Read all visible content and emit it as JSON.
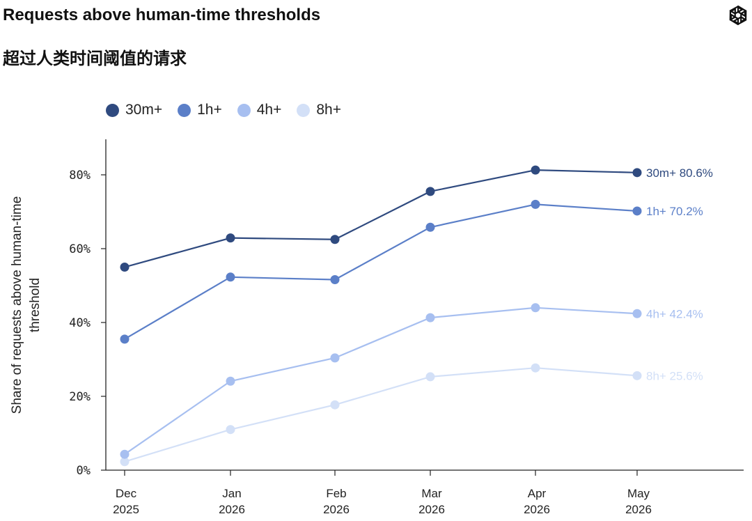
{
  "header": {
    "title": "Requests above human-time thresholds",
    "subtitle": "超过人类时间阈值的请求",
    "logo_icon": "openai-logo-icon"
  },
  "chart_data": {
    "type": "line",
    "title": "Requests above human-time thresholds",
    "subtitle": "超过人类时间阈值的请求",
    "ylabel": "Share of requests above human-time threshold",
    "xlabel": "",
    "categories": [
      "Dec 2025",
      "Jan 2026",
      "Feb 2026",
      "Mar 2026",
      "Apr 2026",
      "May 2026"
    ],
    "x_tick_labels": [
      [
        "Dec",
        "2025"
      ],
      [
        "Jan",
        "2026"
      ],
      [
        "Feb",
        "2026"
      ],
      [
        "Mar",
        "2026"
      ],
      [
        "Apr",
        "2026"
      ],
      [
        "May",
        "2026"
      ]
    ],
    "y_ticks": [
      0,
      20,
      40,
      60,
      80
    ],
    "y_tick_labels": [
      "0%",
      "20%",
      "40%",
      "60%",
      "80%"
    ],
    "ylim": [
      0,
      90
    ],
    "grid": false,
    "legend_position": "top-left",
    "series": [
      {
        "name": "30m+",
        "color": "#2f4a7f",
        "values": [
          55.0,
          62.9,
          62.5,
          75.5,
          81.3,
          80.6
        ],
        "end_label": "30m+ 80.6%"
      },
      {
        "name": "1h+",
        "color": "#5b7fc8",
        "values": [
          35.5,
          52.3,
          51.6,
          65.8,
          72.0,
          70.2
        ],
        "end_label": "1h+ 70.2%"
      },
      {
        "name": "4h+",
        "color": "#a7bff0",
        "values": [
          4.3,
          24.1,
          30.4,
          41.3,
          44.0,
          42.4
        ],
        "end_label": "4h+ 42.4%"
      },
      {
        "name": "8h+",
        "color": "#d3e0f7",
        "values": [
          2.3,
          11.0,
          17.7,
          25.3,
          27.7,
          25.6
        ],
        "end_label": "8h+ 25.6%"
      }
    ]
  }
}
